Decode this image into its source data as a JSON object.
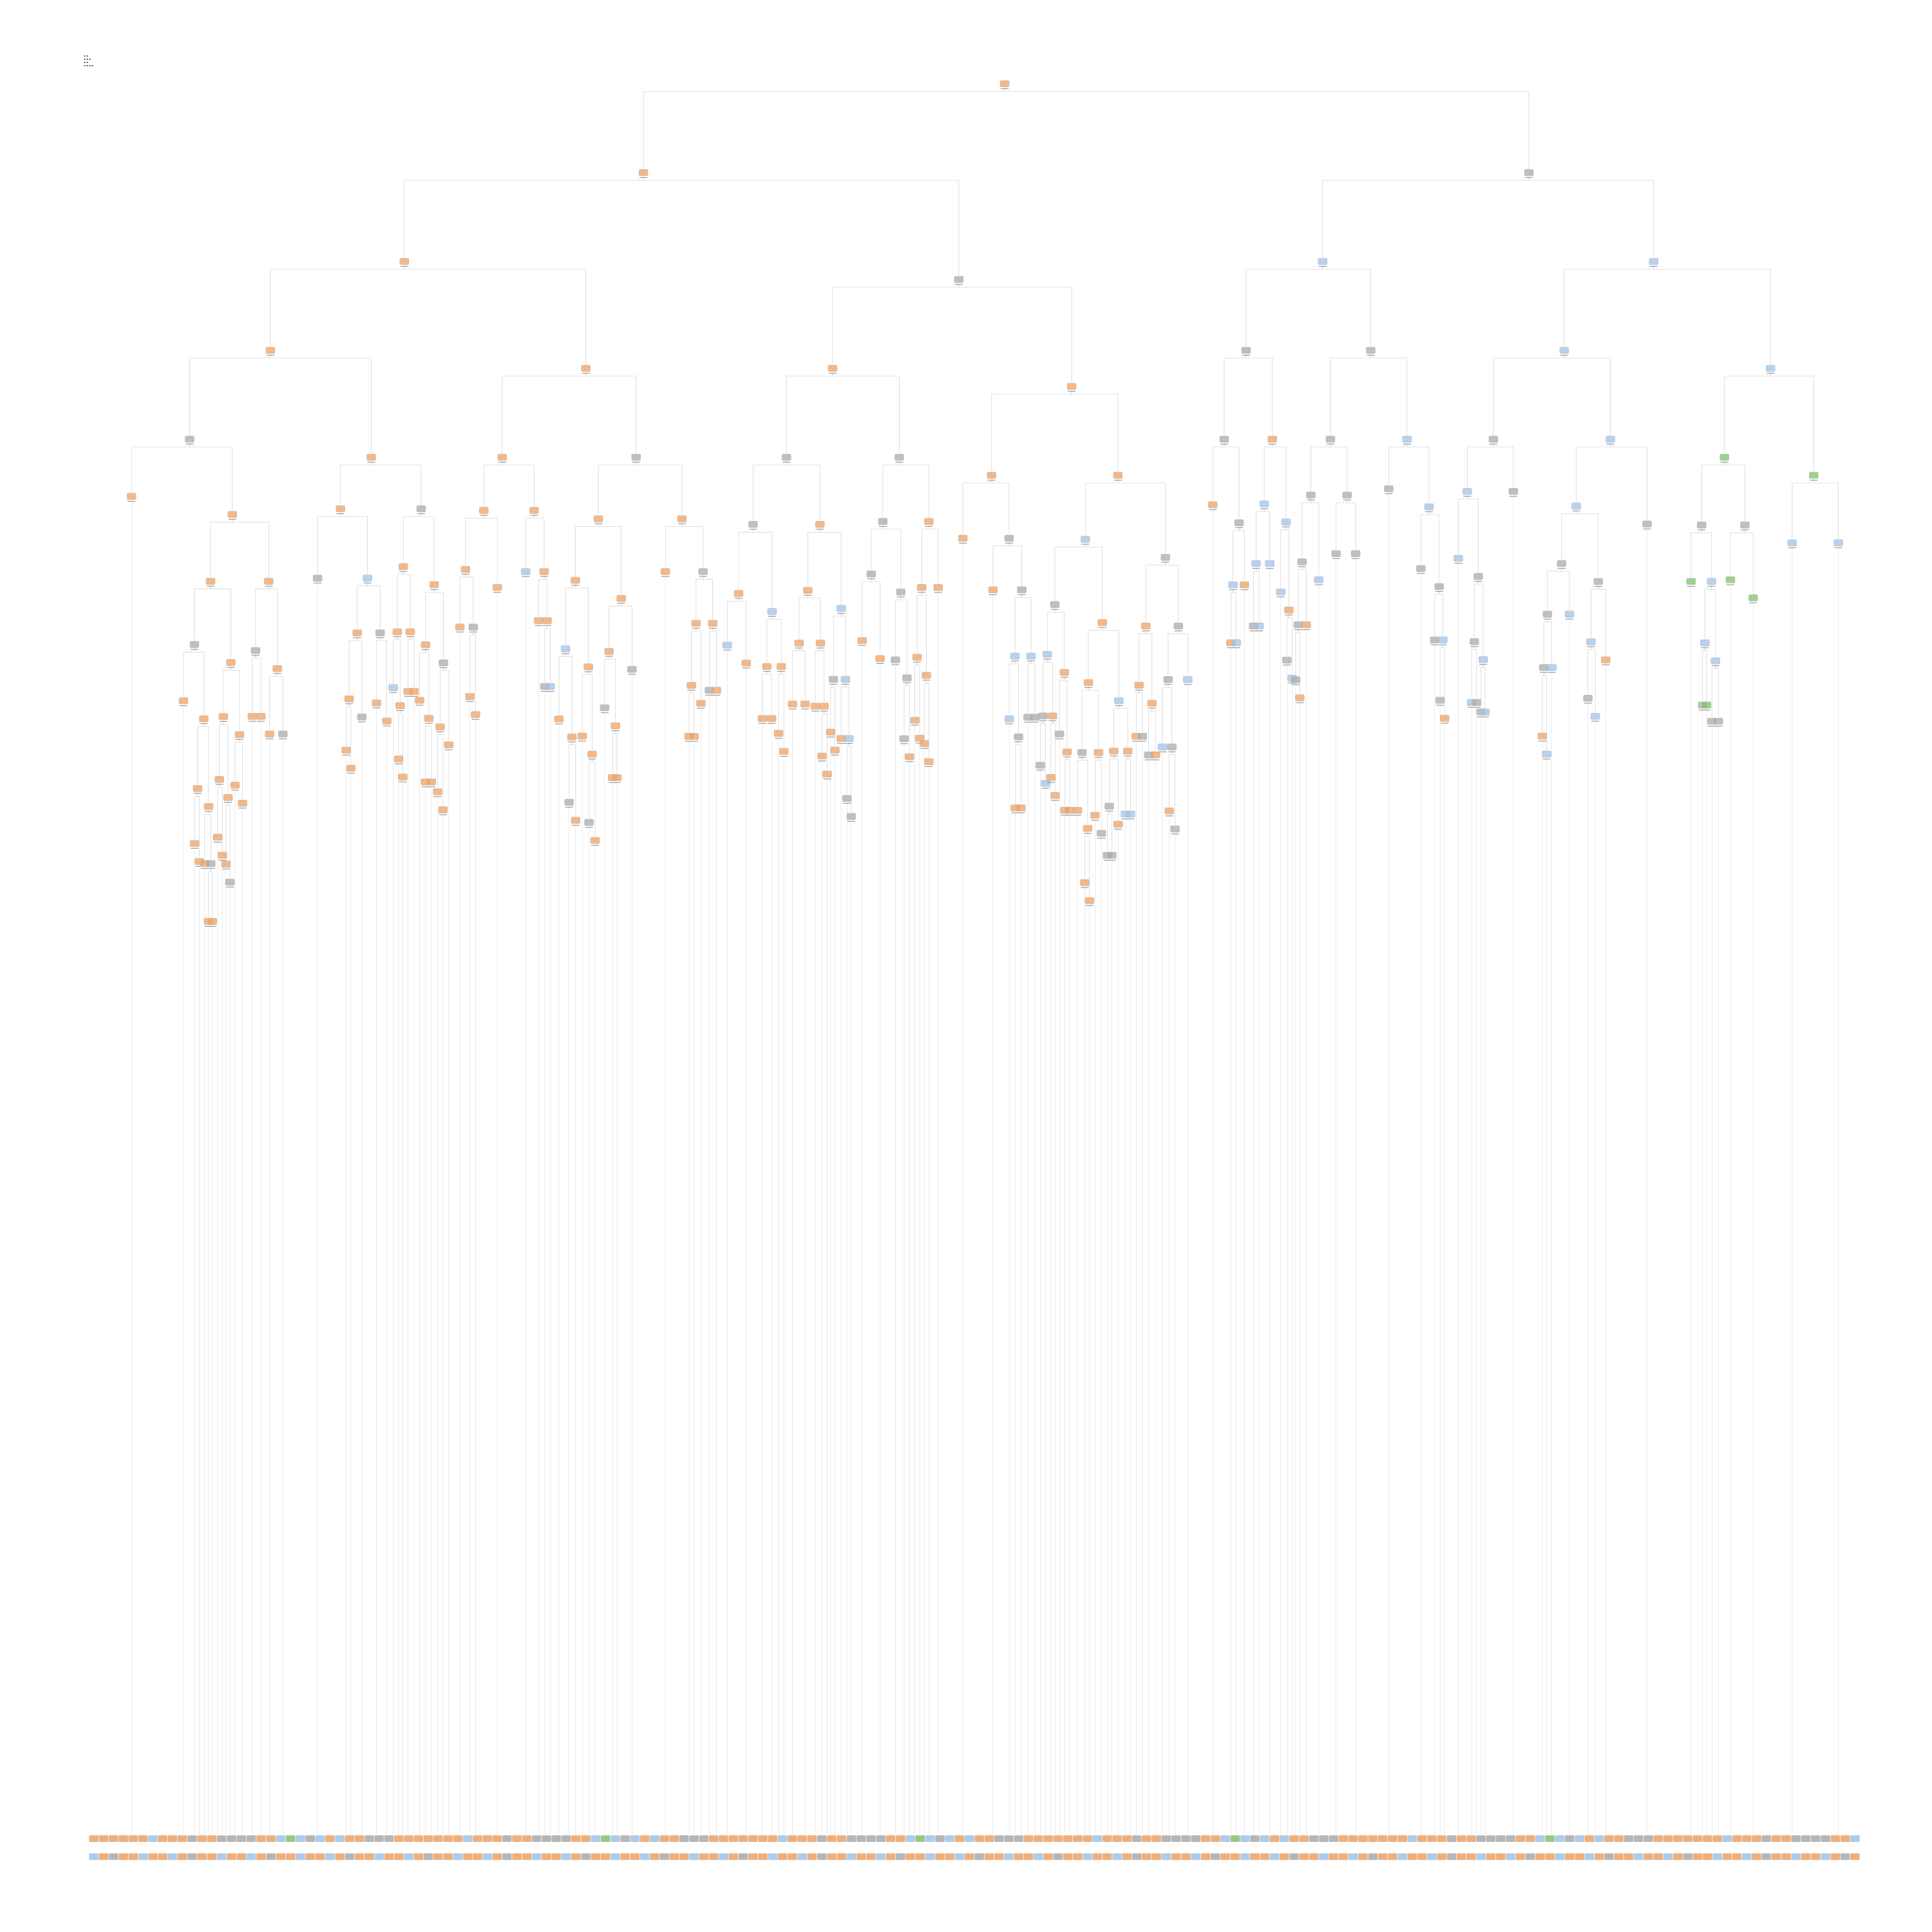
{
  "diagram": {
    "kind": "decision-tree",
    "node_text_legible": false,
    "class_colors": {
      "class_a": "#f0a060",
      "class_b": "#a9a9a9",
      "class_c": "#9fc3e8",
      "class_d": "#7cc36a"
    },
    "edge_color": "#d6d6d6",
    "node_border_color": "#b5b5b5",
    "leaf_row_pattern": [
      "class_a",
      "class_a",
      "class_b",
      "class_a",
      "class_a",
      "class_c",
      "class_a",
      "class_b",
      "class_a",
      "class_a",
      "class_b",
      "class_c",
      "class_a",
      "class_b",
      "class_a",
      "class_a",
      "class_b",
      "class_a",
      "class_c",
      "class_a",
      "class_b",
      "class_a",
      "class_a",
      "class_b",
      "class_a",
      "class_c",
      "class_b",
      "class_a",
      "class_d",
      "class_a",
      "class_b",
      "class_c"
    ],
    "leaf_rows": 2,
    "leaves_per_row": 180
  }
}
